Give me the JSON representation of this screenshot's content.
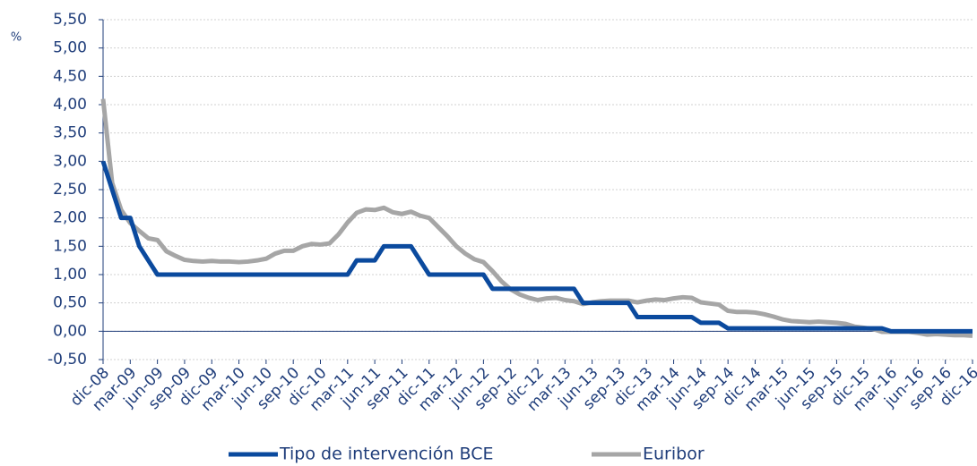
{
  "chart_data": {
    "type": "line",
    "y_label": "%",
    "categories": [
      "dic-08",
      null,
      null,
      "mar-09",
      null,
      null,
      "jun-09",
      null,
      null,
      "sep-09",
      null,
      null,
      "dic-09",
      null,
      null,
      "mar-10",
      null,
      null,
      "jun-10",
      null,
      null,
      "sep-10",
      null,
      null,
      "dic-10",
      null,
      null,
      "mar-11",
      null,
      null,
      "jun-11",
      null,
      null,
      "sep-11",
      null,
      null,
      "dic-11",
      null,
      null,
      "mar-12",
      null,
      null,
      "jun-12",
      null,
      null,
      "sep-12",
      null,
      null,
      "dic-12",
      null,
      null,
      "mar-13",
      null,
      null,
      "jun-13",
      null,
      null,
      "sep-13",
      null,
      null,
      "dic-13",
      null,
      null,
      "mar-14",
      null,
      null,
      "jun-14",
      null,
      null,
      "sep-14",
      null,
      null,
      "dic-14",
      null,
      null,
      "mar-15",
      null,
      null,
      "jun-15",
      null,
      null,
      "sep-15",
      null,
      null,
      "dic-15",
      null,
      null,
      "mar-16",
      null,
      null,
      "jun-16",
      null,
      null,
      "sep-16",
      null,
      null,
      "dic-16"
    ],
    "series": [
      {
        "name": "Tipo de intervención BCE",
        "color": "#0b4a9e",
        "values": [
          3.0,
          2.5,
          2.0,
          2.0,
          1.5,
          1.25,
          1.0,
          1.0,
          1.0,
          1.0,
          1.0,
          1.0,
          1.0,
          1.0,
          1.0,
          1.0,
          1.0,
          1.0,
          1.0,
          1.0,
          1.0,
          1.0,
          1.0,
          1.0,
          1.0,
          1.0,
          1.0,
          1.0,
          1.25,
          1.25,
          1.25,
          1.5,
          1.5,
          1.5,
          1.5,
          1.25,
          1.0,
          1.0,
          1.0,
          1.0,
          1.0,
          1.0,
          1.0,
          0.75,
          0.75,
          0.75,
          0.75,
          0.75,
          0.75,
          0.75,
          0.75,
          0.75,
          0.75,
          0.5,
          0.5,
          0.5,
          0.5,
          0.5,
          0.5,
          0.25,
          0.25,
          0.25,
          0.25,
          0.25,
          0.25,
          0.25,
          0.15,
          0.15,
          0.15,
          0.05,
          0.05,
          0.05,
          0.05,
          0.05,
          0.05,
          0.05,
          0.05,
          0.05,
          0.05,
          0.05,
          0.05,
          0.05,
          0.05,
          0.05,
          0.05,
          0.05,
          0.05,
          0,
          0,
          0,
          0,
          0,
          0,
          0,
          0,
          0,
          0
        ]
      },
      {
        "name": "Euribor",
        "color": "#a6a6a6",
        "values": [
          4.1,
          2.62,
          2.14,
          1.91,
          1.77,
          1.64,
          1.61,
          1.41,
          1.33,
          1.26,
          1.24,
          1.23,
          1.24,
          1.23,
          1.23,
          1.22,
          1.23,
          1.25,
          1.28,
          1.37,
          1.42,
          1.42,
          1.5,
          1.54,
          1.53,
          1.55,
          1.71,
          1.92,
          2.09,
          2.15,
          2.14,
          2.18,
          2.1,
          2.07,
          2.11,
          2.04,
          2.0,
          1.84,
          1.68,
          1.5,
          1.37,
          1.27,
          1.22,
          1.06,
          0.88,
          0.74,
          0.65,
          0.59,
          0.55,
          0.58,
          0.59,
          0.55,
          0.53,
          0.48,
          0.51,
          0.53,
          0.54,
          0.54,
          0.54,
          0.51,
          0.54,
          0.56,
          0.55,
          0.58,
          0.6,
          0.59,
          0.51,
          0.49,
          0.47,
          0.36,
          0.34,
          0.34,
          0.33,
          0.3,
          0.26,
          0.21,
          0.18,
          0.17,
          0.16,
          0.17,
          0.16,
          0.15,
          0.13,
          0.08,
          0.06,
          0.04,
          -0.01,
          -0.01,
          -0.01,
          -0.01,
          -0.03,
          -0.06,
          -0.05,
          -0.06,
          -0.07,
          -0.07,
          -0.08
        ]
      }
    ],
    "ylim": [
      -0.5,
      5.5
    ],
    "yticks": [
      {
        "value": -0.5,
        "label": "-0,50"
      },
      {
        "value": 0,
        "label": "0,00"
      },
      {
        "value": 0.5,
        "label": "0,50"
      },
      {
        "value": 1,
        "label": "1,00"
      },
      {
        "value": 1.5,
        "label": "1,50"
      },
      {
        "value": 2,
        "label": "2,00"
      },
      {
        "value": 2.5,
        "label": "2,50"
      },
      {
        "value": 3,
        "label": "3,00"
      },
      {
        "value": 3.5,
        "label": "3,50"
      },
      {
        "value": 4,
        "label": "4,00"
      },
      {
        "value": 4.5,
        "label": "4,50"
      },
      {
        "value": 5,
        "label": "5,00"
      },
      {
        "value": 5.5,
        "label": "5,50"
      }
    ],
    "grid": true,
    "legend": "bottom"
  }
}
